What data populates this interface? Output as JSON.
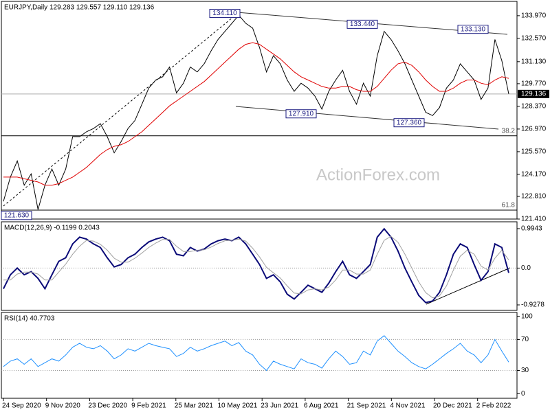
{
  "chart_data": [
    {
      "type": "line",
      "title": "EURJPY,Daily 129.283 129.557 129.110 129.136",
      "ylim": [
        121.41,
        134.855
      ],
      "yticks": [
        {
          "value": 121.41,
          "label": "121.410"
        },
        {
          "value": 122.81,
          "label": "122.810"
        },
        {
          "value": 124.17,
          "label": "124.170"
        },
        {
          "value": 125.57,
          "label": "125.570"
        },
        {
          "value": 126.97,
          "label": "126.970"
        },
        {
          "value": 128.37,
          "label": "128.370"
        },
        {
          "value": 129.77,
          "label": "129.770"
        },
        {
          "value": 131.13,
          "label": "131.130"
        },
        {
          "value": 132.57,
          "label": "132.570"
        },
        {
          "value": 133.97,
          "label": "133.970"
        }
      ],
      "series": [
        {
          "color": "#000000",
          "values": [
            122.5,
            124.0,
            125.0,
            123.5,
            124.2,
            122.0,
            123.5,
            124.5,
            123.5,
            124.5,
            126.5,
            126.5,
            126.8,
            127.0,
            127.3,
            126.5,
            125.5,
            126.2,
            127.0,
            127.5,
            128.5,
            129.5,
            130.0,
            130.2,
            130.8,
            129.2,
            129.8,
            130.8,
            130.5,
            131.0,
            131.8,
            132.5,
            133.0,
            133.5,
            134.0,
            133.5,
            133.2,
            132.0,
            130.5,
            131.5,
            131.0,
            130.0,
            129.3,
            129.8,
            129.5,
            129.0,
            128.2,
            129.3,
            130.0,
            130.6,
            129.3,
            128.5,
            129.8,
            129.0,
            131.5,
            133.0,
            132.5,
            131.8,
            131.0,
            130.0,
            129.0,
            128.0,
            127.8,
            128.3,
            129.5,
            130.0,
            131.0,
            130.5,
            130.0,
            128.8,
            129.5,
            132.5,
            131.2,
            129.136
          ]
        },
        {
          "color": "#e00000",
          "values": [
            124.0,
            124.0,
            124.0,
            123.9,
            123.8,
            123.7,
            123.5,
            123.5,
            123.6,
            123.8,
            124.0,
            124.3,
            124.6,
            125.0,
            125.4,
            125.7,
            125.9,
            126.0,
            126.2,
            126.5,
            126.8,
            127.2,
            127.6,
            128.0,
            128.4,
            128.7,
            129.0,
            129.3,
            129.6,
            129.9,
            130.3,
            130.7,
            131.1,
            131.5,
            131.9,
            132.2,
            132.3,
            132.2,
            131.9,
            131.6,
            131.3,
            130.9,
            130.5,
            130.2,
            130.0,
            129.8,
            129.6,
            129.5,
            129.5,
            129.6,
            129.6,
            129.4,
            129.3,
            129.3,
            129.6,
            130.1,
            130.6,
            131.0,
            131.1,
            130.9,
            130.5,
            130.0,
            129.6,
            129.3,
            129.3,
            129.5,
            129.8,
            130.0,
            130.0,
            129.8,
            129.7,
            130.0,
            130.2,
            130.1
          ]
        }
      ],
      "last_price": 129.136,
      "annotations": [
        {
          "value": 134.11,
          "label": "134.110"
        },
        {
          "value": 133.44,
          "label": "133.440"
        },
        {
          "value": 133.13,
          "label": "133.130"
        },
        {
          "value": 127.91,
          "label": "127.910"
        },
        {
          "value": 127.36,
          "label": "127.360"
        },
        {
          "value": 121.63,
          "label": "121.630"
        }
      ],
      "fib_levels": [
        {
          "price": 126.55,
          "label": "38.2"
        },
        {
          "price": 121.96,
          "label": "61.8"
        }
      ]
    },
    {
      "type": "line",
      "title": "MACD(12,26,9) -0.1199 0.2043",
      "ylim": [
        -1.066,
        1.167
      ],
      "yticks": [
        0.9943,
        {
          "value": 0,
          "label": "0.0"
        },
        -0.9278
      ],
      "series": [
        {
          "color": "#0a0a78",
          "values": [
            -0.52,
            -0.17,
            0,
            -0.17,
            -0.09,
            -0.26,
            -0.52,
            -0.17,
            0.17,
            0.26,
            0.61,
            0.78,
            0.73,
            0.61,
            0.52,
            0.26,
            0.03,
            0.09,
            0.26,
            0.35,
            0.52,
            0.66,
            0.73,
            0.78,
            0.69,
            0.35,
            0.31,
            0.52,
            0.43,
            0.48,
            0.61,
            0.69,
            0.73,
            0.69,
            0.78,
            0.61,
            0.35,
            0.09,
            -0.26,
            -0.17,
            -0.35,
            -0.66,
            -0.78,
            -0.61,
            -0.43,
            -0.52,
            -0.61,
            -0.38,
            -0.09,
            0.17,
            -0.17,
            -0.26,
            -0.09,
            0.09,
            0.78,
            0.99,
            0.78,
            0.43,
            0,
            -0.35,
            -0.69,
            -0.87,
            -0.83,
            -0.61,
            -0.17,
            0.35,
            0.61,
            0.52,
            0.09,
            -0.31,
            -0.09,
            0.61,
            0.52,
            -0.1199
          ]
        },
        {
          "color": "#a0a0a0",
          "values": [
            -0.3,
            -0.3,
            -0.15,
            -0.1,
            -0.1,
            -0.15,
            -0.3,
            -0.3,
            -0.1,
            0.1,
            0.35,
            0.55,
            0.7,
            0.68,
            0.6,
            0.45,
            0.25,
            0.15,
            0.15,
            0.25,
            0.38,
            0.52,
            0.63,
            0.72,
            0.72,
            0.55,
            0.42,
            0.42,
            0.45,
            0.46,
            0.53,
            0.62,
            0.69,
            0.7,
            0.73,
            0.68,
            0.5,
            0.28,
            0.02,
            -0.12,
            -0.25,
            -0.45,
            -0.63,
            -0.65,
            -0.55,
            -0.52,
            -0.55,
            -0.48,
            -0.3,
            -0.05,
            -0.05,
            -0.15,
            -0.15,
            -0.05,
            0.35,
            0.7,
            0.8,
            0.65,
            0.35,
            0,
            -0.35,
            -0.62,
            -0.75,
            -0.7,
            -0.45,
            -0.05,
            0.3,
            0.45,
            0.35,
            0.05,
            -0.05,
            0.25,
            0.45,
            0.2043
          ]
        }
      ]
    },
    {
      "type": "line",
      "title": "RSI(14) 40.7703",
      "ylim": [
        -6,
        105
      ],
      "yticks": [
        100,
        70,
        30,
        0
      ],
      "series": [
        {
          "color": "#1e90ff",
          "values": [
            35,
            42,
            45,
            38,
            45,
            35,
            40,
            45,
            42,
            50,
            60,
            65,
            60,
            58,
            62,
            55,
            45,
            50,
            58,
            55,
            60,
            65,
            62,
            60,
            58,
            48,
            52,
            60,
            55,
            58,
            62,
            65,
            68,
            62,
            66,
            55,
            50,
            38,
            30,
            42,
            38,
            35,
            32,
            45,
            40,
            38,
            33,
            45,
            55,
            48,
            38,
            40,
            55,
            50,
            68,
            75,
            65,
            55,
            48,
            40,
            35,
            32,
            38,
            45,
            52,
            58,
            65,
            55,
            50,
            40,
            50,
            70,
            55,
            40.7703
          ]
        }
      ]
    }
  ],
  "time_axis": [
    "24 Sep 2020",
    "9 Nov 2020",
    "23 Dec 2020",
    "9 Feb 2021",
    "25 Mar 2021",
    "10 May 2021",
    "23 Jun 2021",
    "6 Aug 2021",
    "21 Sep 2021",
    "4 Nov 2021",
    "20 Dec 2021",
    "2 Feb 2022"
  ],
  "watermark": "ActionForex.com"
}
